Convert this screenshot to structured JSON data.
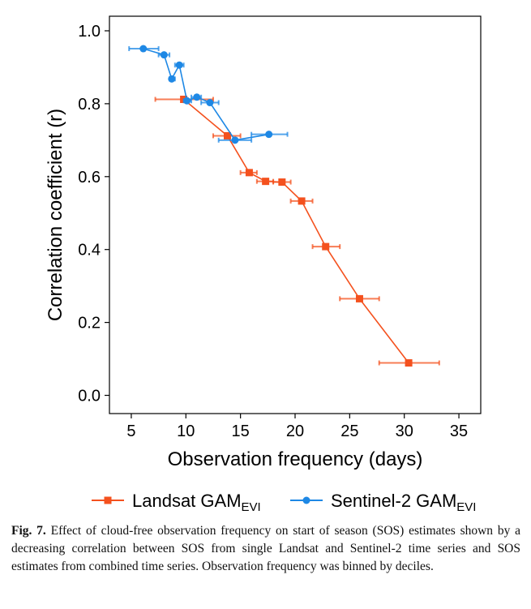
{
  "chart_data": {
    "type": "line",
    "xlabel": "Observation frequency (days)",
    "ylabel": "Correlation coefficient (r)",
    "xlim": [
      3,
      37
    ],
    "ylim": [
      -0.05,
      1.04
    ],
    "x_ticks": [
      5,
      10,
      15,
      20,
      25,
      30,
      35
    ],
    "y_ticks": [
      0.0,
      0.2,
      0.4,
      0.6,
      0.8,
      1.0
    ],
    "y_tick_labels": [
      "0.0",
      "0.2",
      "0.4",
      "0.6",
      "0.8",
      "1.0"
    ],
    "grid": false,
    "legend_position": "bottom",
    "series": [
      {
        "name": "Landsat GAM",
        "name_sub": "EVI",
        "color": "#f4511e",
        "marker": "square",
        "points": [
          {
            "x": 9.8,
            "y": 0.812,
            "xmin": 7.2,
            "xmax": 12.5
          },
          {
            "x": 13.8,
            "y": 0.712,
            "xmin": 12.5,
            "xmax": 15.0
          },
          {
            "x": 15.8,
            "y": 0.611,
            "xmin": 15.0,
            "xmax": 16.5
          },
          {
            "x": 17.3,
            "y": 0.587,
            "xmin": 16.5,
            "xmax": 18.0
          },
          {
            "x": 18.8,
            "y": 0.585,
            "xmin": 18.0,
            "xmax": 19.6
          },
          {
            "x": 20.6,
            "y": 0.533,
            "xmin": 19.6,
            "xmax": 21.6
          },
          {
            "x": 22.8,
            "y": 0.408,
            "xmin": 21.6,
            "xmax": 24.1
          },
          {
            "x": 25.9,
            "y": 0.265,
            "xmin": 24.1,
            "xmax": 27.7
          },
          {
            "x": 30.4,
            "y": 0.089,
            "xmin": 27.7,
            "xmax": 33.2
          }
        ]
      },
      {
        "name": "Sentinel-2 GAM",
        "name_sub": "EVI",
        "color": "#1e88e5",
        "marker": "circle",
        "points": [
          {
            "x": 6.1,
            "y": 0.951,
            "xmin": 4.8,
            "xmax": 7.5
          },
          {
            "x": 8.0,
            "y": 0.934,
            "xmin": 7.5,
            "xmax": 8.5
          },
          {
            "x": 8.7,
            "y": 0.868,
            "xmin": 8.5,
            "xmax": 9.0
          },
          {
            "x": 9.4,
            "y": 0.906,
            "xmin": 9.0,
            "xmax": 9.8
          },
          {
            "x": 10.1,
            "y": 0.808,
            "xmin": 9.8,
            "xmax": 10.5
          },
          {
            "x": 11.0,
            "y": 0.818,
            "xmin": 10.5,
            "xmax": 11.4
          },
          {
            "x": 12.2,
            "y": 0.803,
            "xmin": 11.4,
            "xmax": 13.0
          },
          {
            "x": 14.5,
            "y": 0.7,
            "xmin": 13.0,
            "xmax": 16.0
          },
          {
            "x": 17.6,
            "y": 0.716,
            "xmin": 16.0,
            "xmax": 19.3
          }
        ]
      }
    ]
  },
  "caption": {
    "label": "Fig. 7.",
    "text": "Effect of cloud-free observation frequency on start of season (SOS) estimates shown by a decreasing correlation between SOS from single Landsat and Sentinel-2 time series and SOS estimates from combined time series. Observation frequency was binned by deciles."
  }
}
